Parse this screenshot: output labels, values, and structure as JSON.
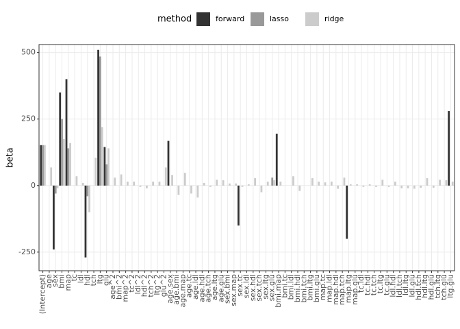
{
  "chart_data": {
    "type": "bar",
    "y_label": "beta",
    "legend_title": "method",
    "categories": [
      "(Intercept)",
      "age",
      "sex",
      "bmi",
      "map",
      "tc",
      "ldl",
      "hdl",
      "tch",
      "ltg",
      "glu",
      "age^2",
      "bmi^2",
      "map^2",
      "tc^2",
      "ldl^2",
      "hdl^2",
      "tch^2",
      "ltg^2",
      "glu^2",
      "age.sex",
      "age.bmi",
      "age.map",
      "age.tc",
      "age.ldl",
      "age.hdl",
      "age.tch",
      "age.ltg",
      "age.glu",
      "sex.bmi",
      "sex.map",
      "sex.tc",
      "sex.ldl",
      "sex.hdl",
      "sex.tch",
      "sex.ltg",
      "sex.glu",
      "bmi.map",
      "bmi.tc",
      "bmi.ldl",
      "bmi.hdl",
      "bmi.tch",
      "bmi.ltg",
      "bmi.glu",
      "map.tc",
      "map.ldl",
      "map.hdl",
      "map.tch",
      "map.ltg",
      "map.glu",
      "tc.ldl",
      "tc.hdl",
      "tc.tch",
      "tc.ltg",
      "tc.glu",
      "ldl.hdl",
      "ldl.tch",
      "ldl.ltg",
      "ldl.glu",
      "hdl.tch",
      "hdl.ltg",
      "hdl.glu",
      "tch.ltg",
      "tch.glu",
      "ltg.glu"
    ],
    "series": [
      {
        "name": "forward",
        "color": "#333333",
        "values": [
          152,
          0,
          -240,
          350,
          400,
          0,
          0,
          -270,
          0,
          510,
          145,
          0,
          0,
          0,
          0,
          0,
          0,
          0,
          0,
          0,
          168,
          0,
          0,
          0,
          0,
          0,
          0,
          0,
          0,
          0,
          0,
          -150,
          0,
          0,
          0,
          0,
          0,
          195,
          0,
          0,
          0,
          0,
          0,
          0,
          0,
          0,
          0,
          0,
          -200,
          0,
          0,
          0,
          0,
          0,
          0,
          0,
          0,
          0,
          0,
          0,
          0,
          0,
          0,
          0,
          280
        ]
      },
      {
        "name": "lasso",
        "color": "#999999",
        "values": [
          152,
          0,
          -30,
          250,
          140,
          0,
          0,
          -40,
          0,
          485,
          80,
          0,
          0,
          0,
          0,
          0,
          0,
          0,
          0,
          0,
          0,
          0,
          0,
          0,
          0,
          0,
          0,
          0,
          0,
          0,
          0,
          0,
          0,
          0,
          0,
          0,
          30,
          0,
          0,
          0,
          0,
          0,
          0,
          0,
          0,
          0,
          0,
          0,
          0,
          0,
          0,
          0,
          0,
          0,
          0,
          0,
          0,
          0,
          0,
          0,
          0,
          0,
          0,
          0,
          0
        ]
      },
      {
        "name": "ridge",
        "color": "#cccccc",
        "values": [
          152,
          68,
          -10,
          175,
          160,
          35,
          10,
          -100,
          105,
          220,
          140,
          30,
          42,
          15,
          15,
          -5,
          -10,
          15,
          15,
          68,
          40,
          -35,
          48,
          -30,
          -45,
          10,
          -5,
          22,
          20,
          8,
          8,
          -5,
          5,
          28,
          -25,
          15,
          20,
          15,
          0,
          35,
          -20,
          0,
          28,
          15,
          12,
          15,
          -12,
          30,
          5,
          5,
          -5,
          5,
          -5,
          22,
          -5,
          15,
          -10,
          -10,
          -12,
          -8,
          28,
          -8,
          22,
          20,
          15
        ]
      }
    ],
    "ylim": [
      -320,
      530
    ],
    "yticks": [
      -250,
      0,
      250,
      500
    ],
    "grid": true,
    "legend_position": "top"
  }
}
